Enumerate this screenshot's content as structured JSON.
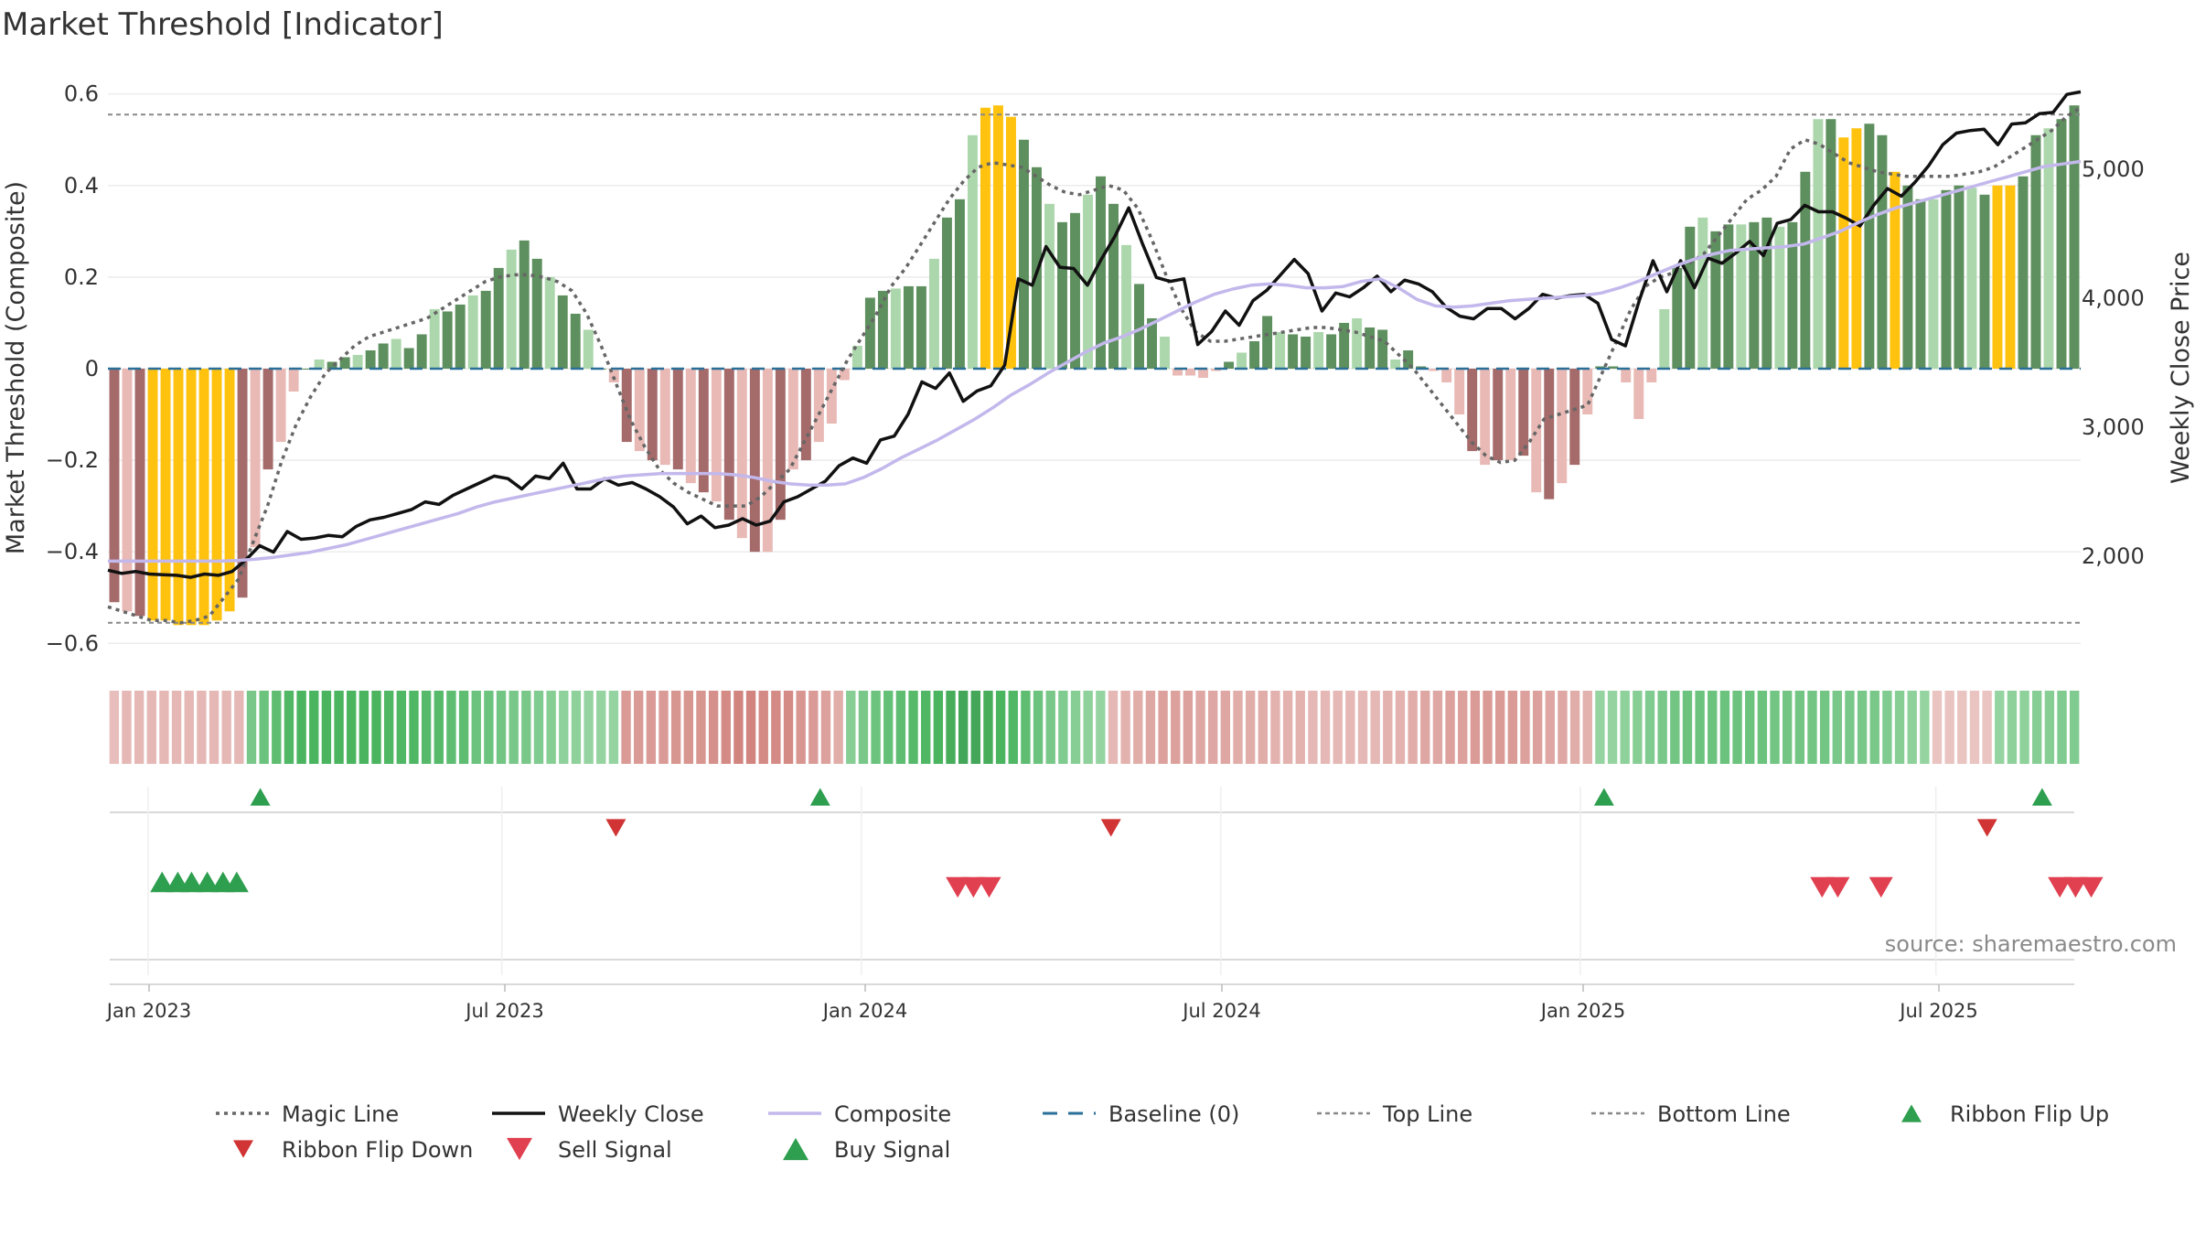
{
  "chart_data": {
    "type": "bar",
    "title": "Market Threshold [Indicator]",
    "ylabel": "Market Threshold (Composite)",
    "y2label": "Weekly Close Price",
    "ylim": [
      -0.63,
      0.6
    ],
    "y2lim": [
      1400,
      5600
    ],
    "yticks": [
      "−0.6",
      "−0.4",
      "−0.2",
      "0",
      "0.2",
      "0.4",
      "0.6"
    ],
    "y2ticks": [
      "2,000",
      "3,000",
      "4,000",
      "5,000"
    ],
    "xticks": [
      "Jan 2023",
      "Jul 2023",
      "Jan 2024",
      "Jul 2024",
      "Jan 2025",
      "Jul 2025"
    ],
    "top_line": 0.555,
    "bottom_line": -0.555,
    "source": "source: sharemaestro.com",
    "bars": [
      -0.51,
      -0.53,
      -0.54,
      -0.55,
      -0.55,
      -0.56,
      -0.56,
      -0.56,
      -0.55,
      -0.53,
      -0.5,
      -0.39,
      -0.22,
      -0.16,
      -0.05,
      0.0,
      0.02,
      0.015,
      0.025,
      0.03,
      0.04,
      0.055,
      0.065,
      0.045,
      0.075,
      0.13,
      0.125,
      0.14,
      0.16,
      0.17,
      0.22,
      0.26,
      0.28,
      0.24,
      0.2,
      0.16,
      0.12,
      0.085,
      0.0,
      -0.03,
      -0.16,
      -0.18,
      -0.2,
      -0.21,
      -0.22,
      -0.25,
      -0.27,
      -0.29,
      -0.33,
      -0.37,
      -0.4,
      -0.4,
      -0.33,
      -0.22,
      -0.2,
      -0.16,
      -0.12,
      -0.025,
      0.05,
      0.155,
      0.17,
      0.175,
      0.18,
      0.18,
      0.24,
      0.33,
      0.37,
      0.51,
      0.57,
      0.575,
      0.55,
      0.5,
      0.44,
      0.36,
      0.32,
      0.34,
      0.38,
      0.42,
      0.36,
      0.27,
      0.185,
      0.11,
      0.07,
      -0.015,
      -0.015,
      -0.02,
      -0.005,
      0.015,
      0.035,
      0.06,
      0.115,
      0.08,
      0.075,
      0.07,
      0.08,
      0.075,
      0.1,
      0.11,
      0.09,
      0.085,
      0.02,
      0.04,
      0.005,
      -0.005,
      -0.03,
      -0.1,
      -0.18,
      -0.21,
      -0.2,
      -0.2,
      -0.19,
      -0.27,
      -0.285,
      -0.25,
      -0.21,
      -0.1,
      0.005,
      0.005,
      -0.03,
      -0.11,
      -0.03,
      0.13,
      0.22,
      0.31,
      0.33,
      0.3,
      0.315,
      0.315,
      0.32,
      0.33,
      0.31,
      0.32,
      0.43,
      0.545,
      0.545,
      0.505,
      0.525,
      0.535,
      0.51,
      0.43,
      0.4,
      0.37,
      0.37,
      0.39,
      0.4,
      0.395,
      0.38,
      0.4,
      0.4,
      0.42,
      0.51,
      0.525,
      0.545,
      0.575
    ],
    "bar_flags": {
      "yellow_indices": [
        3,
        4,
        5,
        6,
        7,
        8,
        9,
        68,
        69,
        70,
        135,
        136,
        139,
        147,
        148
      ],
      "note": "other bars: green if positive, red if negative; strength by magnitude"
    },
    "series": [
      {
        "name": "Magic Line",
        "axis": "left",
        "values": [
          -0.52,
          -0.53,
          -0.54,
          -0.55,
          -0.55,
          -0.555,
          -0.55,
          -0.54,
          -0.5,
          -0.46,
          -0.38,
          -0.3,
          -0.2,
          -0.12,
          -0.06,
          -0.01,
          0.02,
          0.05,
          0.07,
          0.08,
          0.09,
          0.1,
          0.11,
          0.13,
          0.15,
          0.17,
          0.19,
          0.2,
          0.205,
          0.205,
          0.2,
          0.19,
          0.17,
          0.12,
          0.05,
          -0.03,
          -0.11,
          -0.17,
          -0.22,
          -0.25,
          -0.27,
          -0.285,
          -0.3,
          -0.3,
          -0.3,
          -0.28,
          -0.25,
          -0.22,
          -0.16,
          -0.1,
          -0.04,
          0.02,
          0.07,
          0.12,
          0.18,
          0.22,
          0.27,
          0.32,
          0.37,
          0.41,
          0.44,
          0.45,
          0.445,
          0.44,
          0.42,
          0.4,
          0.385,
          0.38,
          0.39,
          0.4,
          0.39,
          0.35,
          0.28,
          0.2,
          0.13,
          0.08,
          0.06,
          0.06,
          0.065,
          0.07,
          0.075,
          0.08,
          0.085,
          0.09,
          0.09,
          0.085,
          0.08,
          0.07,
          0.06,
          0.03,
          0.0,
          -0.04,
          -0.08,
          -0.12,
          -0.16,
          -0.19,
          -0.205,
          -0.2,
          -0.16,
          -0.11,
          -0.1,
          -0.09,
          -0.08,
          -0.01,
          0.06,
          0.13,
          0.18,
          0.2,
          0.21,
          0.23,
          0.25,
          0.29,
          0.33,
          0.37,
          0.39,
          0.42,
          0.48,
          0.5,
          0.49,
          0.47,
          0.45,
          0.44,
          0.43,
          0.425,
          0.42,
          0.42,
          0.42,
          0.42,
          0.425,
          0.43,
          0.44,
          0.46,
          0.48,
          0.5,
          0.52,
          0.55,
          0.57
        ]
      },
      {
        "name": "Weekly Close",
        "axis": "right",
        "values": [
          1890,
          1865,
          1880,
          1860,
          1855,
          1850,
          1835,
          1860,
          1850,
          1880,
          1970,
          2080,
          2030,
          2190,
          2130,
          2140,
          2160,
          2150,
          2230,
          2280,
          2300,
          2330,
          2360,
          2420,
          2400,
          2470,
          2520,
          2570,
          2620,
          2600,
          2520,
          2620,
          2600,
          2720,
          2520,
          2520,
          2600,
          2550,
          2570,
          2520,
          2460,
          2380,
          2250,
          2310,
          2220,
          2240,
          2290,
          2240,
          2270,
          2420,
          2460,
          2520,
          2580,
          2700,
          2760,
          2720,
          2900,
          2930,
          3100,
          3350,
          3300,
          3420,
          3200,
          3280,
          3320,
          3480,
          4150,
          4100,
          4400,
          4240,
          4230,
          4100,
          4300,
          4480,
          4700,
          4420,
          4160,
          4130,
          4150,
          3640,
          3740,
          3900,
          3790,
          3980,
          4060,
          4180,
          4300,
          4190,
          3900,
          4040,
          4010,
          4080,
          4170,
          4050,
          4140,
          4110,
          4050,
          3930,
          3860,
          3840,
          3920,
          3920,
          3840,
          3920,
          4030,
          4000,
          4020,
          4030,
          3960,
          3680,
          3630,
          3980,
          4290,
          4050,
          4290,
          4080,
          4310,
          4270,
          4350,
          4440,
          4330,
          4580,
          4610,
          4720,
          4670,
          4670,
          4620,
          4560,
          4720,
          4850,
          4790,
          4900,
          5030,
          5190,
          5280,
          5300,
          5310,
          5190,
          5350,
          5360,
          5430,
          5440,
          5580,
          5600
        ]
      },
      {
        "name": "Composite",
        "axis": "right",
        "values": [
          1960,
          1960,
          1960,
          1960,
          1960,
          1960,
          1960,
          1965,
          1975,
          1990,
          2010,
          2030,
          2060,
          2090,
          2130,
          2170,
          2210,
          2250,
          2290,
          2330,
          2380,
          2420,
          2450,
          2480,
          2510,
          2540,
          2570,
          2600,
          2620,
          2630,
          2640,
          2640,
          2640,
          2640,
          2630,
          2610,
          2580,
          2560,
          2550,
          2550,
          2560,
          2610,
          2680,
          2760,
          2830,
          2900,
          2980,
          3060,
          3150,
          3250,
          3330,
          3420,
          3500,
          3580,
          3650,
          3700,
          3760,
          3830,
          3900,
          3970,
          4030,
          4070,
          4100,
          4110,
          4100,
          4080,
          4080,
          4090,
          4130,
          4150,
          4080,
          3990,
          3940,
          3930,
          3940,
          3960,
          3980,
          3990,
          4000,
          4010,
          4020,
          4040,
          4080,
          4130,
          4190,
          4250,
          4300,
          4340,
          4370,
          4380,
          4390,
          4400,
          4420,
          4470,
          4520,
          4590,
          4650,
          4700,
          4740,
          4780,
          4820,
          4860,
          4900,
          4940,
          4980,
          5020,
          5040,
          5060
        ]
      }
    ],
    "ribbon": [
      -0.25,
      -0.3,
      -0.3,
      -0.3,
      -0.3,
      -0.3,
      -0.3,
      -0.3,
      -0.3,
      -0.3,
      -0.3,
      0.5,
      0.6,
      0.7,
      0.8,
      0.85,
      0.85,
      0.85,
      0.85,
      0.85,
      0.85,
      0.85,
      0.8,
      0.8,
      0.8,
      0.75,
      0.75,
      0.7,
      0.7,
      0.6,
      0.6,
      0.55,
      0.5,
      0.5,
      0.45,
      0.4,
      0.35,
      0.35,
      0.3,
      0.3,
      0.3,
      -0.55,
      -0.55,
      -0.55,
      -0.55,
      -0.6,
      -0.6,
      -0.6,
      -0.65,
      -0.7,
      -0.75,
      -0.75,
      -0.7,
      -0.7,
      -0.7,
      -0.6,
      -0.55,
      -0.5,
      -0.4,
      0.4,
      0.5,
      0.6,
      0.65,
      0.7,
      0.75,
      0.8,
      0.85,
      0.9,
      0.95,
      0.95,
      0.9,
      0.85,
      0.8,
      0.7,
      0.6,
      0.5,
      0.45,
      0.4,
      0.35,
      0.3,
      -0.3,
      -0.35,
      -0.4,
      -0.45,
      -0.5,
      -0.5,
      -0.5,
      -0.45,
      -0.45,
      -0.45,
      -0.4,
      -0.4,
      -0.4,
      -0.35,
      -0.35,
      -0.35,
      -0.3,
      -0.3,
      -0.3,
      -0.3,
      -0.3,
      -0.3,
      -0.35,
      -0.35,
      -0.4,
      -0.45,
      -0.45,
      -0.5,
      -0.5,
      -0.55,
      -0.55,
      -0.55,
      -0.55,
      -0.5,
      -0.5,
      -0.45,
      -0.45,
      -0.4,
      -0.35,
      0.3,
      0.3,
      0.35,
      0.4,
      0.45,
      0.5,
      0.55,
      0.6,
      0.6,
      0.6,
      0.6,
      0.6,
      0.6,
      0.6,
      0.55,
      0.55,
      0.55,
      0.55,
      0.55,
      0.5,
      0.5,
      0.5,
      0.5,
      0.45,
      0.4,
      0.35,
      0.3,
      -0.2,
      -0.2,
      -0.2,
      -0.2,
      -0.2,
      0.3,
      0.35,
      0.35,
      0.4,
      0.4,
      0.45,
      0.45
    ],
    "signals": [
      {
        "type": "Ribbon Flip Up",
        "x": 0.065,
        "row": 1
      },
      {
        "type": "Ribbon Flip Up",
        "x": 0.35,
        "row": 1
      },
      {
        "type": "Ribbon Flip Up",
        "x": 0.749,
        "row": 1
      },
      {
        "type": "Ribbon Flip Up",
        "x": 0.972,
        "row": 1
      },
      {
        "type": "Ribbon Flip Down",
        "x": 0.246,
        "row": 2
      },
      {
        "type": "Ribbon Flip Down",
        "x": 0.498,
        "row": 2
      },
      {
        "type": "Ribbon Flip Down",
        "x": 0.944,
        "row": 2
      },
      {
        "type": "Buy Signal",
        "x": 0.015,
        "row": 3
      },
      {
        "type": "Buy Signal",
        "x": 0.023,
        "row": 3
      },
      {
        "type": "Buy Signal",
        "x": 0.03,
        "row": 3
      },
      {
        "type": "Buy Signal",
        "x": 0.038,
        "row": 3
      },
      {
        "type": "Buy Signal",
        "x": 0.046,
        "row": 3
      },
      {
        "type": "Buy Signal",
        "x": 0.053,
        "row": 3
      },
      {
        "type": "Sell Signal",
        "x": 0.42,
        "row": 3
      },
      {
        "type": "Sell Signal",
        "x": 0.428,
        "row": 3
      },
      {
        "type": "Sell Signal",
        "x": 0.436,
        "row": 3
      },
      {
        "type": "Sell Signal",
        "x": 0.86,
        "row": 3
      },
      {
        "type": "Sell Signal",
        "x": 0.868,
        "row": 3
      },
      {
        "type": "Sell Signal",
        "x": 0.89,
        "row": 3
      },
      {
        "type": "Sell Signal",
        "x": 0.981,
        "row": 3
      },
      {
        "type": "Sell Signal",
        "x": 0.989,
        "row": 3
      },
      {
        "type": "Sell Signal",
        "x": 0.997,
        "row": 3
      }
    ],
    "legend": [
      {
        "label": "Magic Line",
        "kind": "dotted-line",
        "color": "#666666"
      },
      {
        "label": "Weekly Close",
        "kind": "line",
        "color": "#111111"
      },
      {
        "label": "Composite",
        "kind": "line",
        "color": "#c3b8ec"
      },
      {
        "label": "Baseline (0)",
        "kind": "dashed-line",
        "color": "#2a6f97"
      },
      {
        "label": "Top Line",
        "kind": "dotted-thin",
        "color": "#888888"
      },
      {
        "label": "Bottom Line",
        "kind": "dotted-thin",
        "color": "#888888"
      },
      {
        "label": "Ribbon Flip Up",
        "kind": "tri-up-small",
        "color": "#2e9e4f"
      },
      {
        "label": "Ribbon Flip Down",
        "kind": "tri-down-small",
        "color": "#d03434"
      },
      {
        "label": "Sell Signal",
        "kind": "tri-down",
        "color": "#e04050"
      },
      {
        "label": "Buy Signal",
        "kind": "tri-up",
        "color": "#2e9e4f"
      }
    ],
    "colors": {
      "yellow": "#ffc20e",
      "green_strong": "#5e8f5e",
      "green_light": "#acd7ac",
      "red_strong": "#a56a6a",
      "red_light": "#e8b9b5",
      "baseline": "#2a6f97",
      "grid": "#ececec"
    }
  }
}
